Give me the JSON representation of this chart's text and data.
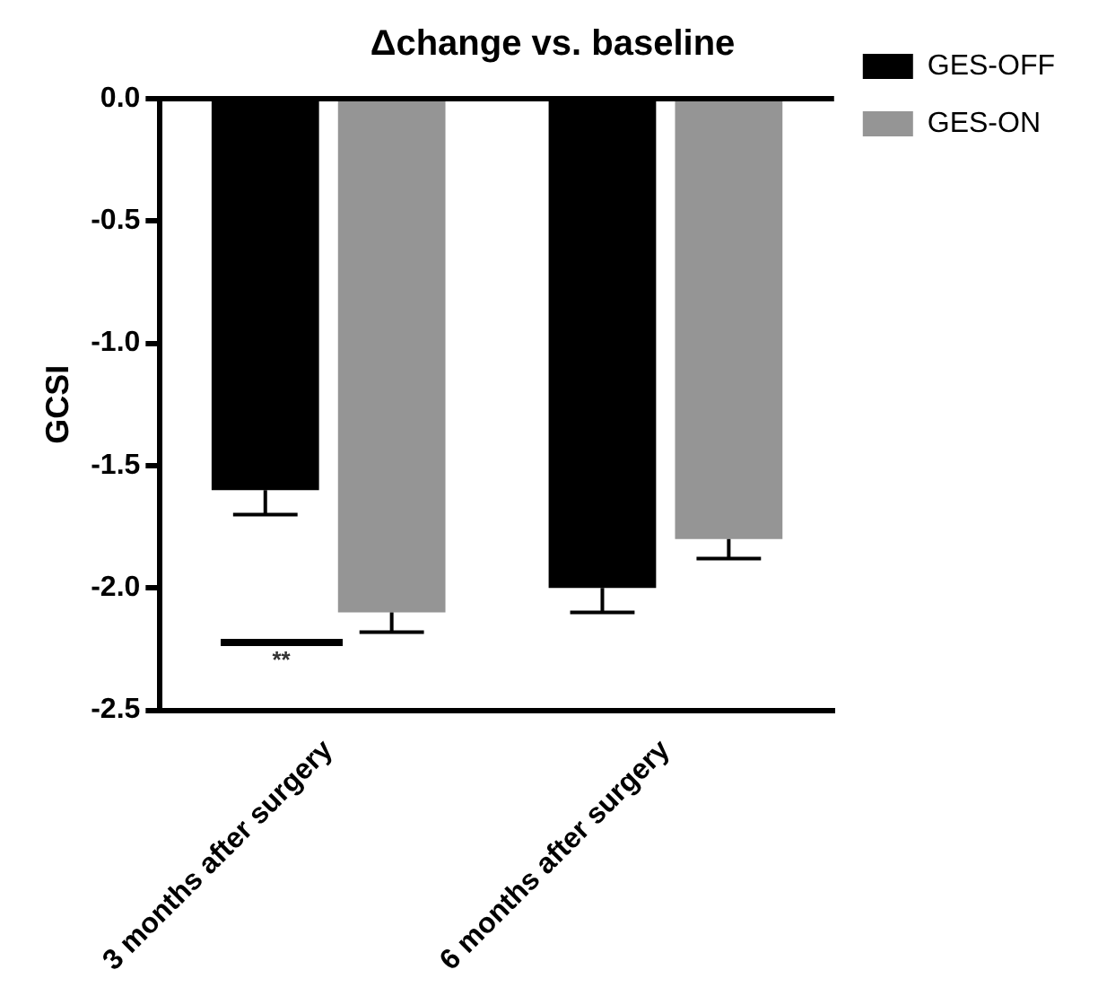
{
  "chart_data": {
    "type": "bar",
    "title": "Δchange vs. baseline",
    "ylabel": "GCSI",
    "categories": [
      "3 months after surgery",
      "6 months after surgery"
    ],
    "series": [
      {
        "name": "GES-OFF",
        "color": "#000000",
        "values": [
          -1.6,
          -2.0
        ],
        "errors": [
          [
            -1.7,
            -1.6
          ],
          [
            -2.1,
            -2.0
          ]
        ]
      },
      {
        "name": "GES-ON",
        "color": "#959595",
        "values": [
          -2.1,
          -1.8
        ],
        "errors": [
          [
            -2.18,
            -2.1
          ],
          [
            -1.88,
            -1.8
          ]
        ]
      }
    ],
    "ylim": [
      -2.5,
      0
    ],
    "yticks": [
      {
        "value": 0,
        "label": "0.0"
      },
      {
        "value": -0.5,
        "label": "-0.5"
      },
      {
        "value": -1,
        "label": "-1.0"
      },
      {
        "value": -1.5,
        "label": "-1.5"
      },
      {
        "value": -2,
        "label": "-2.0"
      },
      {
        "value": -2.5,
        "label": "-2.5"
      }
    ],
    "annotations": [
      "**"
    ],
    "grid": false,
    "legend": "right"
  }
}
